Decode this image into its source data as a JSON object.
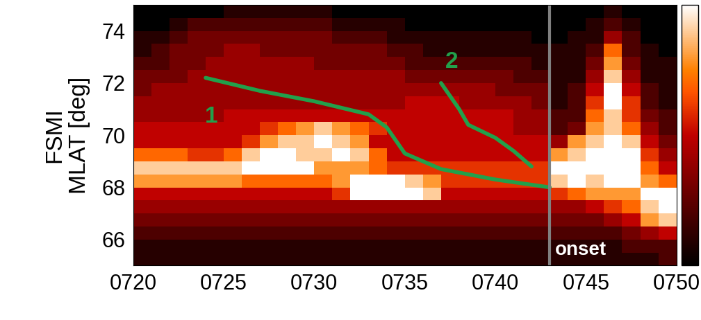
{
  "chart_data": {
    "type": "heatmap",
    "ylabel": "FSMI\nMLAT [deg]",
    "xlim": [
      720,
      750
    ],
    "ylim": [
      65,
      75
    ],
    "xticks": [
      {
        "value": 720,
        "label": "0720"
      },
      {
        "value": 725,
        "label": "0725"
      },
      {
        "value": 730,
        "label": "0730"
      },
      {
        "value": 735,
        "label": "0735"
      },
      {
        "value": 740,
        "label": "0740"
      },
      {
        "value": 745,
        "label": "0745"
      },
      {
        "value": 750,
        "label": "0750"
      }
    ],
    "yticks": [
      66,
      68,
      70,
      72,
      74
    ],
    "cell_x_edges": [
      720,
      721,
      722,
      723,
      724,
      725,
      726,
      727,
      728,
      729,
      730,
      731,
      732,
      733,
      734,
      735,
      736,
      737,
      738,
      739,
      740,
      741,
      742,
      743,
      744,
      745,
      746,
      747,
      748,
      749,
      750
    ],
    "cell_y_edges": [
      65.0,
      65.5,
      66.0,
      66.5,
      67.0,
      67.5,
      68.0,
      68.5,
      69.0,
      69.5,
      70.0,
      70.5,
      71.0,
      71.5,
      72.0,
      72.5,
      73.0,
      73.5,
      74.0,
      74.5,
      75.0
    ],
    "cells": [
      [
        1,
        1,
        1,
        1,
        1,
        1,
        1,
        1,
        1,
        1,
        1,
        1,
        1,
        1,
        1,
        1,
        1,
        1,
        1,
        1,
        1,
        1,
        1,
        1,
        1,
        1,
        1,
        1,
        1,
        2
      ],
      [
        1,
        1,
        1,
        1,
        1,
        1,
        1,
        1,
        1,
        1,
        1,
        1,
        1,
        1,
        1,
        1,
        1,
        1,
        1,
        1,
        1,
        1,
        1,
        1,
        1,
        1,
        1,
        2,
        2,
        2
      ],
      [
        2,
        2,
        2,
        2,
        2,
        2,
        2,
        2,
        2,
        2,
        2,
        2,
        2,
        2,
        2,
        2,
        2,
        2,
        2,
        2,
        2,
        2,
        2,
        2,
        2,
        2,
        2,
        3,
        4,
        5
      ],
      [
        3,
        3,
        3,
        3,
        3,
        3,
        3,
        3,
        3,
        3,
        3,
        3,
        3,
        3,
        3,
        3,
        3,
        3,
        3,
        3,
        3,
        3,
        3,
        3,
        3,
        3,
        4,
        5,
        8,
        9
      ],
      [
        4,
        4,
        4,
        4,
        4,
        4,
        4,
        4,
        4,
        4,
        4,
        4,
        4,
        4,
        4,
        4,
        4,
        4,
        4,
        4,
        4,
        4,
        4,
        4,
        4,
        5,
        6,
        7,
        9,
        10
      ],
      [
        5,
        5,
        5,
        5,
        5,
        5,
        5,
        5,
        5,
        5,
        5,
        6,
        10,
        10,
        10,
        10,
        9,
        5,
        5,
        5,
        5,
        5,
        5,
        6,
        7,
        8,
        8,
        8,
        10,
        10
      ],
      [
        8,
        8,
        8,
        8,
        8,
        8,
        7,
        7,
        7,
        7,
        7,
        8,
        10,
        10,
        10,
        9,
        8,
        6,
        6,
        6,
        6,
        6,
        6,
        9,
        10,
        9,
        10,
        10,
        8,
        7
      ],
      [
        9,
        9,
        9,
        9,
        9,
        9,
        10,
        10,
        10,
        10,
        8,
        8,
        8,
        7,
        6,
        6,
        6,
        6,
        6,
        6,
        6,
        6,
        6,
        10,
        10,
        10,
        10,
        10,
        7,
        5
      ],
      [
        7,
        7,
        7,
        6,
        6,
        7,
        9,
        10,
        10,
        9,
        9,
        10,
        9,
        7,
        5,
        5,
        5,
        5,
        5,
        5,
        5,
        5,
        5,
        8,
        9,
        10,
        10,
        10,
        6,
        4
      ],
      [
        5,
        5,
        5,
        5,
        5,
        5,
        6,
        8,
        9,
        9,
        10,
        9,
        8,
        5,
        5,
        5,
        5,
        5,
        5,
        5,
        5,
        5,
        5,
        4,
        8,
        9,
        10,
        9,
        5,
        3
      ],
      [
        5,
        5,
        5,
        5,
        5,
        5,
        5,
        6,
        7,
        8,
        9,
        8,
        7,
        6,
        5,
        5,
        5,
        5,
        5,
        5,
        5,
        4,
        4,
        2,
        3,
        8,
        9,
        7,
        4,
        2
      ],
      [
        4,
        4,
        4,
        4,
        4,
        5,
        5,
        5,
        5,
        5,
        5,
        5,
        5,
        5,
        5,
        5,
        5,
        5,
        5,
        5,
        5,
        4,
        4,
        2,
        2,
        7,
        9,
        6,
        3,
        2
      ],
      [
        4,
        4,
        4,
        4,
        4,
        4,
        4,
        4,
        4,
        4,
        4,
        4,
        4,
        4,
        4,
        5,
        5,
        5,
        4,
        4,
        4,
        4,
        3,
        1,
        2,
        6,
        10,
        6,
        2,
        1
      ],
      [
        3,
        4,
        4,
        4,
        4,
        4,
        4,
        4,
        4,
        4,
        4,
        4,
        4,
        4,
        4,
        4,
        4,
        4,
        4,
        4,
        3,
        3,
        3,
        1,
        2,
        5,
        10,
        5,
        2,
        1
      ],
      [
        3,
        3,
        3,
        4,
        4,
        4,
        4,
        4,
        4,
        4,
        4,
        4,
        4,
        4,
        4,
        3,
        3,
        3,
        3,
        3,
        3,
        2,
        2,
        1,
        1,
        4,
        9,
        4,
        1,
        1
      ],
      [
        2,
        2,
        3,
        3,
        4,
        4,
        4,
        4,
        4,
        4,
        3,
        3,
        3,
        3,
        3,
        2,
        2,
        2,
        2,
        2,
        2,
        2,
        1,
        1,
        1,
        3,
        8,
        3,
        1,
        1
      ],
      [
        1,
        2,
        3,
        3,
        3,
        4,
        4,
        3,
        3,
        3,
        3,
        3,
        3,
        3,
        2,
        2,
        1,
        1,
        1,
        1,
        1,
        1,
        1,
        1,
        1,
        2,
        7,
        2,
        1,
        0
      ],
      [
        1,
        1,
        2,
        3,
        3,
        3,
        3,
        3,
        3,
        3,
        3,
        2,
        2,
        2,
        1,
        1,
        1,
        1,
        1,
        1,
        1,
        1,
        0,
        0,
        1,
        1,
        4,
        2,
        0,
        0
      ],
      [
        0,
        0,
        1,
        2,
        2,
        2,
        2,
        2,
        2,
        2,
        2,
        1,
        1,
        1,
        1,
        0,
        0,
        0,
        0,
        0,
        0,
        0,
        0,
        0,
        0,
        1,
        2,
        1,
        0,
        0
      ],
      [
        0,
        0,
        0,
        0,
        0,
        1,
        1,
        1,
        1,
        1,
        1,
        0,
        0,
        0,
        0,
        0,
        0,
        0,
        0,
        0,
        0,
        0,
        0,
        0,
        0,
        0,
        1,
        0,
        0,
        0
      ]
    ],
    "colorbar_range": [
      0,
      10
    ],
    "colorbar_ticks": [],
    "series": [
      {
        "name": "1",
        "color": "#22a04b",
        "label_x": 724.3,
        "label_y": 70.7,
        "x": [
          724,
          727,
          730,
          733,
          734,
          735,
          737,
          740,
          743
        ],
        "values": [
          72.2,
          71.7,
          71.3,
          70.8,
          70.3,
          69.3,
          68.7,
          68.3,
          68.0
        ]
      },
      {
        "name": "2",
        "color": "#22a04b",
        "label_x": 737.6,
        "label_y": 72.8,
        "x": [
          737,
          738,
          738.5,
          740,
          741,
          742
        ],
        "values": [
          72.0,
          71.0,
          70.4,
          69.9,
          69.4,
          68.8
        ]
      }
    ],
    "vertical_line": {
      "x": 743,
      "label": "onset",
      "label_y": 65.6,
      "color": "#808080"
    }
  }
}
